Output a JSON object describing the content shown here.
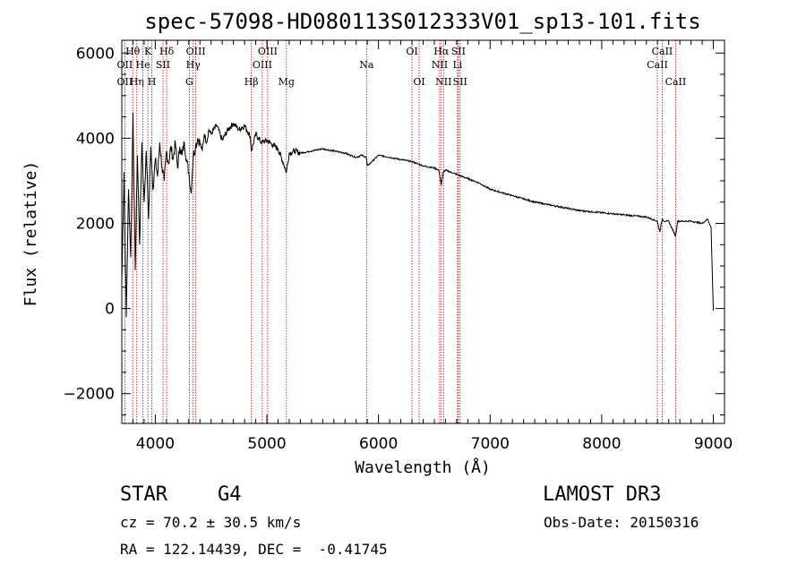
{
  "chart_data": {
    "type": "line",
    "title": "spec-57098-HD080113S012333V01_sp13-101.fits",
    "xlabel": "Wavelength (Å)",
    "ylabel": "Flux (relative)",
    "xlim": [
      3700,
      9100
    ],
    "ylim": [
      -2700,
      6300
    ],
    "x_ticks": [
      4000,
      5000,
      6000,
      7000,
      8000,
      9000
    ],
    "y_ticks": [
      -2000,
      0,
      2000,
      4000,
      6000
    ],
    "colors": {
      "spectrum": "#000000",
      "line_marker": "#cc0000",
      "axes": "#000000"
    },
    "series": [
      {
        "name": "flux",
        "x": [
          3700,
          3720,
          3740,
          3760,
          3780,
          3800,
          3820,
          3840,
          3860,
          3880,
          3900,
          3920,
          3940,
          3960,
          3980,
          4000,
          4020,
          4040,
          4060,
          4080,
          4100,
          4120,
          4140,
          4160,
          4180,
          4200,
          4220,
          4240,
          4260,
          4280,
          4300,
          4320,
          4340,
          4360,
          4380,
          4400,
          4420,
          4440,
          4460,
          4480,
          4500,
          4550,
          4600,
          4650,
          4700,
          4750,
          4800,
          4850,
          4862,
          4900,
          4950,
          5000,
          5050,
          5100,
          5150,
          5175,
          5200,
          5250,
          5300,
          5400,
          5500,
          5600,
          5700,
          5800,
          5850,
          5890,
          5900,
          6000,
          6100,
          6200,
          6300,
          6400,
          6500,
          6540,
          6563,
          6580,
          6600,
          6700,
          6800,
          6900,
          7000,
          7200,
          7400,
          7600,
          7800,
          8000,
          8200,
          8400,
          8498,
          8520,
          8542,
          8560,
          8600,
          8662,
          8680,
          8700,
          8800,
          8900,
          8950,
          8980,
          9000
        ],
        "y": [
          600,
          3200,
          -200,
          2800,
          1200,
          4600,
          900,
          3600,
          1500,
          3900,
          2500,
          3700,
          2100,
          3800,
          2800,
          3500,
          3100,
          3900,
          3300,
          3000,
          3700,
          3400,
          3800,
          3500,
          3900,
          3300,
          3800,
          3600,
          3900,
          3500,
          3200,
          2700,
          3600,
          3800,
          4000,
          3900,
          3700,
          4100,
          3900,
          4200,
          4100,
          4300,
          3950,
          4200,
          4350,
          4200,
          4300,
          4050,
          3700,
          4100,
          3900,
          3950,
          3850,
          3750,
          3400,
          3200,
          3650,
          3700,
          3650,
          3700,
          3750,
          3700,
          3650,
          3550,
          3600,
          3550,
          3350,
          3600,
          3550,
          3500,
          3450,
          3350,
          3300,
          3250,
          2900,
          3200,
          3250,
          3150,
          3050,
          2950,
          2800,
          2650,
          2500,
          2400,
          2300,
          2250,
          2200,
          2150,
          2050,
          1800,
          2100,
          2050,
          2050,
          1700,
          2050,
          2050,
          2050,
          2000,
          2100,
          1900,
          -50
        ]
      }
    ],
    "spectral_lines": [
      {
        "label": "Hθ",
        "wavelength": 3798,
        "row": 1
      },
      {
        "label": "OII",
        "wavelength": 3727,
        "row": 2
      },
      {
        "label": "OII",
        "wavelength": 3727,
        "row": 3
      },
      {
        "label": "Hη",
        "wavelength": 3835,
        "row": 3
      },
      {
        "label": "He",
        "wavelength": 3889,
        "row": 2
      },
      {
        "label": "K",
        "wavelength": 3934,
        "row": 1
      },
      {
        "label": "H",
        "wavelength": 3969,
        "row": 3
      },
      {
        "label": "SII",
        "wavelength": 4069,
        "row": 2
      },
      {
        "label": "Hδ",
        "wavelength": 4102,
        "row": 1
      },
      {
        "label": "Hγ",
        "wavelength": 4340,
        "row": 2
      },
      {
        "label": "OIII",
        "wavelength": 4363,
        "row": 1
      },
      {
        "label": "G",
        "wavelength": 4305,
        "row": 3
      },
      {
        "label": "Hβ",
        "wavelength": 4861,
        "row": 3
      },
      {
        "label": "OIII",
        "wavelength": 5007,
        "row": 1
      },
      {
        "label": "OIII",
        "wavelength": 4959,
        "row": 2
      },
      {
        "label": "Mg",
        "wavelength": 5175,
        "row": 3
      },
      {
        "label": "Na",
        "wavelength": 5893,
        "row": 2
      },
      {
        "label": "OI",
        "wavelength": 6300,
        "row": 1
      },
      {
        "label": "OI",
        "wavelength": 6364,
        "row": 3
      },
      {
        "label": "Hα",
        "wavelength": 6563,
        "row": 1
      },
      {
        "label": "NII",
        "wavelength": 6548,
        "row": 2
      },
      {
        "label": "NII",
        "wavelength": 6583,
        "row": 3
      },
      {
        "label": "SII",
        "wavelength": 6716,
        "row": 1
      },
      {
        "label": "Li",
        "wavelength": 6708,
        "row": 2
      },
      {
        "label": "SII",
        "wavelength": 6731,
        "row": 3
      },
      {
        "label": "CaII",
        "wavelength": 8542,
        "row": 1
      },
      {
        "label": "CaII",
        "wavelength": 8498,
        "row": 2
      },
      {
        "label": "CaII",
        "wavelength": 8662,
        "row": 3
      }
    ]
  },
  "info": {
    "object_class": "STAR",
    "subclass": "G4",
    "survey": "LAMOST DR3",
    "redshift": "cz = 70.2 ± 30.5 km/s",
    "obs_date": "Obs-Date: 20150316",
    "coordinates": "RA = 122.14439, DEC =  -0.41745"
  }
}
